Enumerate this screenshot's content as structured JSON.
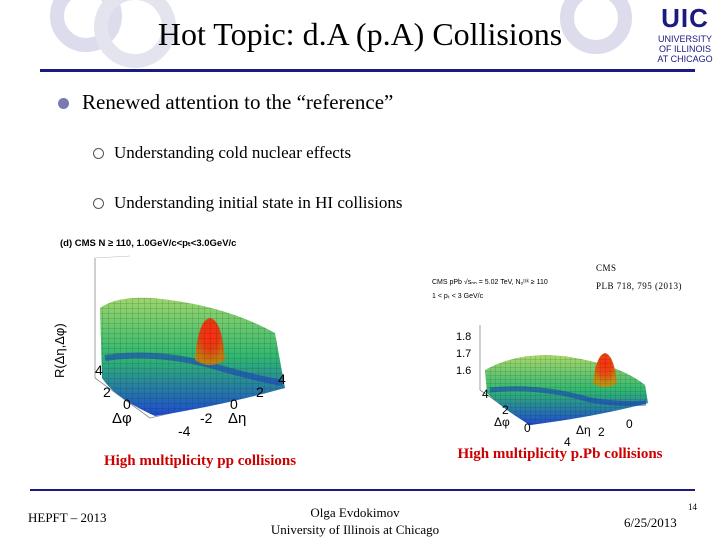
{
  "slide": {
    "title": "Hot Topic: d.A (p.A) Collisions",
    "logo": {
      "mark": "UIC",
      "sub_line1": "UNIVERSITY",
      "sub_line2": "OF ILLINOIS",
      "sub_line3": "AT CHICAGO"
    }
  },
  "bullets": [
    {
      "text": "Renewed attention to the “reference”",
      "sub": [
        "Understanding cold nuclear effects",
        "Understanding initial state in HI collisions"
      ]
    }
  ],
  "figures": {
    "left": {
      "header": "(d) CMS N ≥ 110, 1.0GeV/c<pₜ<3.0GeV/c",
      "ylabel": "R(Δη,Δφ)",
      "ticks_phi": [
        "4",
        "2",
        "0"
      ],
      "ticks_eta": [
        "4",
        "2",
        "0",
        "-2",
        "-4"
      ],
      "axis_phi": "Δφ",
      "axis_eta": "Δη",
      "caption": "High multiplicity pp collisions"
    },
    "right": {
      "cms_line1": "CMS",
      "cms_line2": "PLB 718, 795 (2013)",
      "header_line1": "CMS pPb √sₙₙ = 5.02 TeV, Nₒᵗʳᵏ ≥ 110",
      "header_line2": "1 < pₜ < 3 GeV/c",
      "ticks_z": [
        "1.8",
        "1.7",
        "1.6"
      ],
      "ticks_phi": [
        "4",
        "2",
        "0"
      ],
      "ticks_eta": [
        "4",
        "2",
        "0"
      ],
      "axis_phi": "Δφ",
      "axis_eta": "Δη",
      "caption": "High multiplicity p.Pb collisions"
    }
  },
  "footer": {
    "left": "HEPFT – 2013",
    "center_line1": "Olga Evdokimov",
    "center_line2": "University of Illinois at Chicago",
    "page": "14",
    "date": "6/25/2013"
  },
  "colors": {
    "accent": "#1a1a80",
    "caption": "#cc0000",
    "circle": "#dcdcec"
  }
}
